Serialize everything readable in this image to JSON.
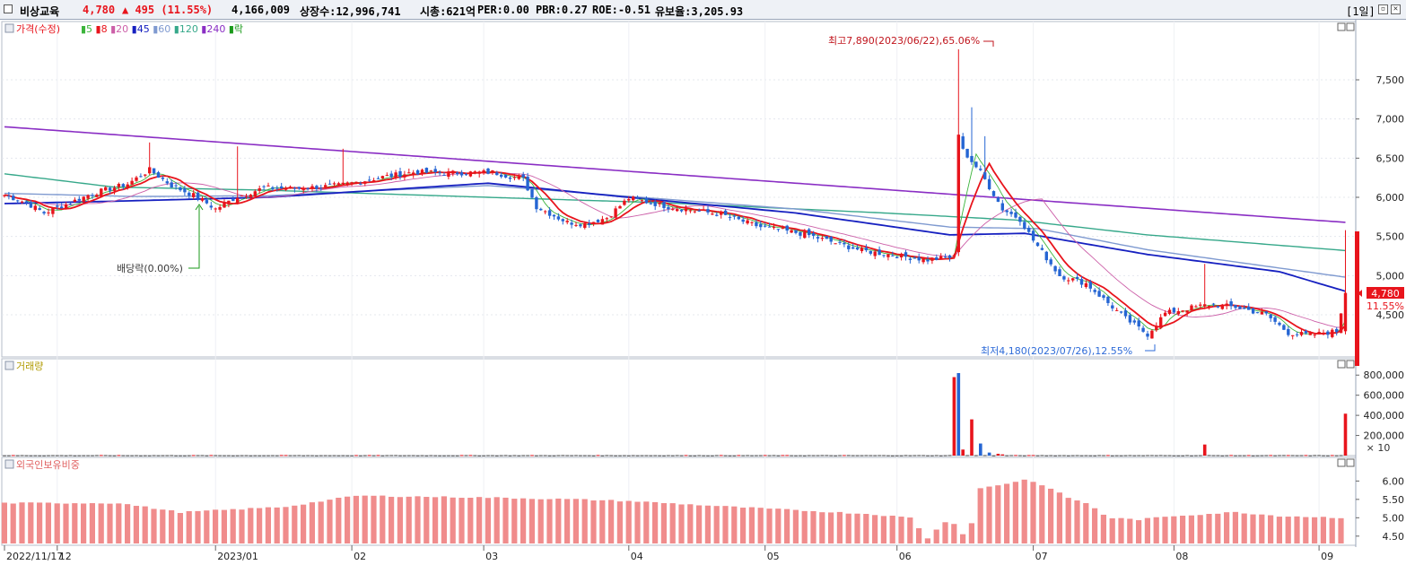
{
  "header": {
    "name": "비상교육",
    "price": "4,780",
    "change": "▲ 495 (11.55%)",
    "volume": "4,166,009",
    "listed": "상장수:12,996,741",
    "mktcap": "시총:621억",
    "per": "PER:0.00",
    "pbr": "PBR:0.27",
    "roe": "ROE:-0.51",
    "reserve": "유보율:3,205.93",
    "period": "[1일]"
  },
  "colors": {
    "up": "#e8141c",
    "down": "#2565d3",
    "ma5": "#3cb43c",
    "ma8": "#e8141c",
    "ma20": "#cc5fa8",
    "ma45": "#1620c0",
    "ma60": "#7f9ad0",
    "ma120": "#36a88a",
    "ma240": "#8a2ec4",
    "bg": "#ffffff",
    "foreign": "#f08c8c"
  },
  "chart_data": [
    {
      "type": "candlestick",
      "title": "가격(수정)",
      "legend": [
        "5",
        "8",
        "20",
        "45",
        "60",
        "120",
        "240",
        "락"
      ],
      "y_ticks": [
        "7,500",
        "7,000",
        "6,500",
        "6,000",
        "5,500",
        "5,000",
        "4,500"
      ],
      "last_price_label": "4,780",
      "last_pct_label": "11.55%",
      "high_annotation": "최고7,890(2023/06/22),65.06%",
      "low_annotation": "최저4,180(2023/07/26),12.55%",
      "dividend_annotation": "배당락(0.00%)",
      "high": {
        "date": "2023/06/22",
        "value": 7890
      },
      "low": {
        "date": "2023/07/26",
        "value": 4180
      },
      "last_close": 4780,
      "ylim": [
        4000,
        8000
      ],
      "ma240_range": [
        6900,
        5680
      ],
      "ma120_last": 5320,
      "ma60_last": 4980,
      "ma45_last": 4800
    },
    {
      "type": "bar",
      "title": "거래량",
      "y_ticks": [
        "800,000",
        "600,000",
        "400,000",
        "200,000"
      ],
      "unit": "× 10",
      "peaks": [
        {
          "date": "2023/06/21",
          "value": 780000
        },
        {
          "date": "2023/06/22",
          "value": 820000
        },
        {
          "date": "2023/06/26",
          "value": 360000
        },
        {
          "date": "2023/08/02",
          "value": 110000
        },
        {
          "date": "2023/08/31",
          "value": 416601
        }
      ]
    },
    {
      "type": "bar",
      "title": "외국인보유비중",
      "y_ticks": [
        "6.00",
        "5.50",
        "5.00",
        "4.50"
      ],
      "ylim": [
        4.3,
        6.35
      ],
      "level_points": [
        [
          0,
          5.4
        ],
        [
          26,
          5.4
        ],
        [
          40,
          5.15
        ],
        [
          64,
          5.3
        ],
        [
          80,
          5.6
        ],
        [
          110,
          5.55
        ],
        [
          130,
          5.5
        ],
        [
          143,
          5.45
        ],
        [
          165,
          5.3
        ],
        [
          197,
          5.1
        ],
        [
          206,
          5.0
        ],
        [
          210,
          4.45
        ],
        [
          215,
          5.0
        ],
        [
          219,
          4.4
        ],
        [
          222,
          5.8
        ],
        [
          228,
          5.93
        ],
        [
          232,
          6.04
        ],
        [
          236,
          5.9
        ],
        [
          242,
          5.55
        ],
        [
          247,
          5.35
        ],
        [
          251,
          5.0
        ],
        [
          258,
          4.95
        ],
        [
          266,
          5.05
        ],
        [
          280,
          5.15
        ],
        [
          290,
          5.05
        ],
        [
          305,
          5.0
        ]
      ]
    }
  ],
  "x_axis": [
    {
      "label": "2022/11/17",
      "i": 0
    },
    {
      "label": "12",
      "i": 12
    },
    {
      "label": "2023/01",
      "i": 48
    },
    {
      "label": "02",
      "i": 79
    },
    {
      "label": "03",
      "i": 109
    },
    {
      "label": "04",
      "i": 142
    },
    {
      "label": "05",
      "i": 173
    },
    {
      "label": "06",
      "i": 203
    },
    {
      "label": "07",
      "i": 234
    },
    {
      "label": "08",
      "i": 266
    },
    {
      "label": "09",
      "i": 299
    }
  ],
  "volume_title": "거래량",
  "foreign_title": "외국인보유비중"
}
